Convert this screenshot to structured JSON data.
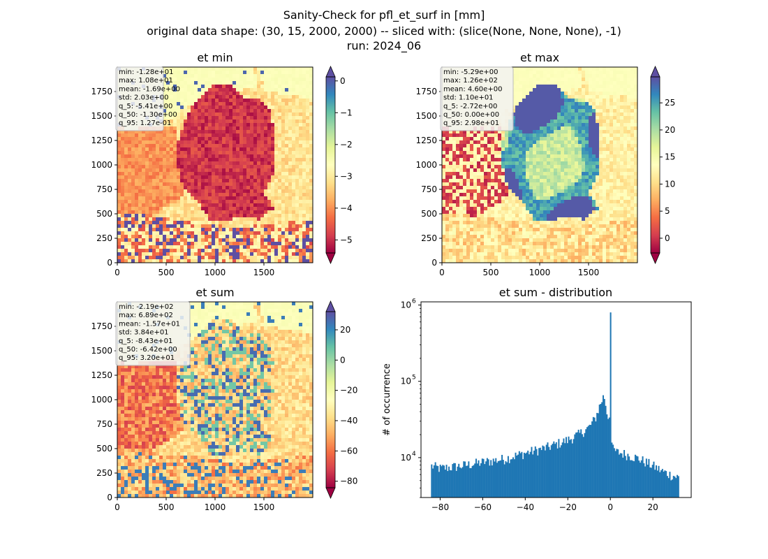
{
  "figure": {
    "title_line1": "Sanity-Check for pfl_et_surf in [mm]",
    "title_line2": "original data shape: (30, 15, 2000, 2000) -- sliced with: (slice(None, None, None), -1)",
    "title_line3": "run: 2024_06"
  },
  "chart_data": [
    {
      "type": "heatmap",
      "title": "et min",
      "x_ticks": [
        "0",
        "500",
        "1000",
        "1500"
      ],
      "y_ticks": [
        "0",
        "250",
        "500",
        "750",
        "1000",
        "1250",
        "1500",
        "1750"
      ],
      "xlim": [
        0,
        2000
      ],
      "ylim": [
        0,
        2000
      ],
      "colormap": "Spectral",
      "colorbar_range": [
        -5.41,
        0.127
      ],
      "colorbar_ticks": [
        "0",
        "−1",
        "−2",
        "−3",
        "−4",
        "−5"
      ],
      "colorbar_tick_values": [
        0,
        -1,
        -2,
        -3,
        -4,
        -5
      ],
      "stats_lines": [
        "min: -1.28e+01",
        "max: 1.08e+01",
        "mean: -1.69e+00",
        "std: 2.03e+00",
        "q_5: -5.41e+00",
        "q_50: -1.30e+00",
        "q_95: 1.27e-01"
      ]
    },
    {
      "type": "heatmap",
      "title": "et max",
      "x_ticks": [
        "0",
        "500",
        "1000",
        "1500"
      ],
      "y_ticks": [
        "0",
        "250",
        "500",
        "750",
        "1000",
        "1250",
        "1500",
        "1750"
      ],
      "xlim": [
        0,
        2000
      ],
      "ylim": [
        0,
        2000
      ],
      "colormap": "Spectral",
      "colorbar_range": [
        -2.72,
        29.8
      ],
      "colorbar_ticks": [
        "25",
        "20",
        "15",
        "10",
        "5",
        "0"
      ],
      "colorbar_tick_values": [
        25,
        20,
        15,
        10,
        5,
        0
      ],
      "stats_lines": [
        "min: -5.29e+00",
        "max: 1.26e+02",
        "mean: 4.60e+00",
        "std: 1.10e+01",
        "q_5: -2.72e+00",
        "q_50: 0.00e+00",
        "q_95: 2.98e+01"
      ]
    },
    {
      "type": "heatmap",
      "title": "et sum",
      "x_ticks": [
        "0",
        "500",
        "1000",
        "1500"
      ],
      "y_ticks": [
        "0",
        "250",
        "500",
        "750",
        "1000",
        "1250",
        "1500",
        "1750"
      ],
      "xlim": [
        0,
        2000
      ],
      "ylim": [
        0,
        2000
      ],
      "colormap": "Spectral",
      "colorbar_range": [
        -84.3,
        32.0
      ],
      "colorbar_ticks": [
        "20",
        "0",
        "−20",
        "−40",
        "−60",
        "−80"
      ],
      "colorbar_tick_values": [
        20,
        0,
        -20,
        -40,
        -60,
        -80
      ],
      "stats_lines": [
        "min: -2.19e+02",
        "max: 6.89e+02",
        "mean: -1.57e+01",
        "std: 3.84e+01",
        "q_5: -8.43e+01",
        "q_50: -6.42e+00",
        "q_95: 3.20e+01"
      ]
    },
    {
      "type": "bar",
      "title": "et sum - distribution",
      "ylabel": "# of occurrence",
      "xlabel": "",
      "y_scale": "log",
      "xlim": [
        -89,
        38
      ],
      "ylim": [
        3000,
        1100000
      ],
      "x_ticks": [
        "−80",
        "−60",
        "−40",
        "−20",
        "0",
        "20"
      ],
      "x_tick_values": [
        -80,
        -60,
        -40,
        -20,
        0,
        20
      ],
      "y_tick_labels": [
        "10",
        "10",
        "10"
      ],
      "y_tick_exponents": [
        "4",
        "5",
        "6"
      ],
      "y_tick_values": [
        10000,
        100000,
        1000000
      ],
      "bin_range": [
        -84.3,
        32.0
      ],
      "bin_width": 0.58,
      "color": "#1f77b4",
      "series": [
        {
          "anchors_x": [
            -84.3,
            -80,
            -70,
            -60,
            -50,
            -40,
            -30,
            -20,
            -15,
            -10,
            -7,
            -5,
            -3,
            -1.5,
            -0.6,
            -0.1,
            0,
            0.2,
            1,
            3,
            5,
            10,
            15,
            20,
            25,
            28,
            32
          ],
          "anchors_y": [
            7800,
            7200,
            7800,
            8700,
            9600,
            11500,
            13500,
            17000,
            20000,
            25000,
            33000,
            48000,
            66000,
            38000,
            30000,
            90000,
            800000,
            20000,
            13000,
            11800,
            11500,
            10500,
            9200,
            7800,
            6500,
            6000,
            5500
          ]
        }
      ]
    }
  ]
}
